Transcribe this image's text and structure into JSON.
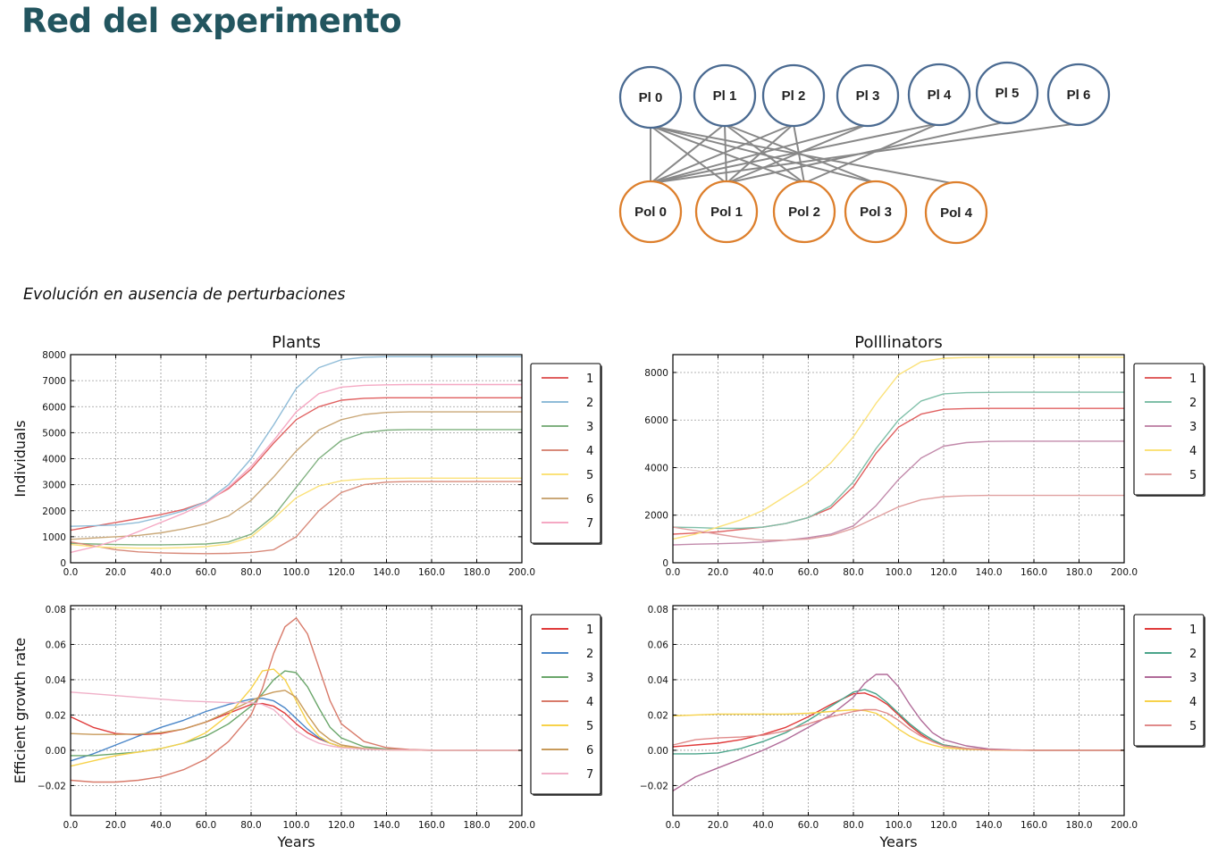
{
  "page": {
    "title": "Red del experimento",
    "subtitle": "Evolución en ausencia de perturbaciones"
  },
  "network": {
    "plants": [
      "Pl 0",
      "Pl 1",
      "Pl 2",
      "Pl 3",
      "Pl 4",
      "Pl 5",
      "Pl 6"
    ],
    "pollinators": [
      "Pol 0",
      "Pol 1",
      "Pol 2",
      "Pol 3",
      "Pol 4"
    ],
    "edges": [
      [
        0,
        0
      ],
      [
        0,
        1
      ],
      [
        0,
        2
      ],
      [
        0,
        3
      ],
      [
        0,
        4
      ],
      [
        1,
        0
      ],
      [
        1,
        1
      ],
      [
        1,
        2
      ],
      [
        1,
        3
      ],
      [
        2,
        0
      ],
      [
        2,
        1
      ],
      [
        2,
        2
      ],
      [
        3,
        0
      ],
      [
        3,
        1
      ],
      [
        4,
        0
      ],
      [
        4,
        2
      ],
      [
        5,
        1
      ],
      [
        6,
        0
      ]
    ],
    "colors": {
      "plant": "#4a6a91",
      "pollinator": "#dd7f2c",
      "edge": "#888888"
    }
  },
  "chart_data": [
    {
      "id": "plants-individuals",
      "type": "line",
      "title": "Plants",
      "xlabel": "",
      "ylabel": "Individuals",
      "xlim": [
        0,
        200
      ],
      "ylim": [
        0,
        8000
      ],
      "yticks": [
        "0",
        "1000",
        "2000",
        "3000",
        "4000",
        "5000",
        "6000",
        "7000",
        "8000"
      ],
      "ytick_values": [
        0,
        1000,
        2000,
        3000,
        4000,
        5000,
        6000,
        7000,
        8000
      ],
      "xticks": [
        "0.0",
        "20.0",
        "40.0",
        "60.0",
        "80.0",
        "100.0",
        "120.0",
        "140.0",
        "160.0",
        "180.0",
        "200.0"
      ],
      "xtick_values": [
        0,
        20,
        40,
        60,
        80,
        100,
        120,
        140,
        160,
        180,
        200
      ],
      "grid": true,
      "legend": "right",
      "x": [
        0,
        10,
        20,
        30,
        40,
        50,
        60,
        70,
        80,
        90,
        100,
        110,
        120,
        130,
        140,
        150,
        160,
        170,
        180,
        190,
        200
      ],
      "series": [
        {
          "name": "1",
          "color": "#e06060",
          "values": [
            1250,
            1400,
            1550,
            1700,
            1850,
            2050,
            2350,
            2850,
            3600,
            4600,
            5500,
            6000,
            6250,
            6320,
            6340,
            6340,
            6340,
            6340,
            6340,
            6340,
            6340
          ]
        },
        {
          "name": "2",
          "color": "#8fbcd8",
          "values": [
            1400,
            1420,
            1450,
            1550,
            1750,
            2000,
            2350,
            3000,
            4000,
            5300,
            6700,
            7500,
            7800,
            7900,
            7920,
            7920,
            7920,
            7920,
            7920,
            7920,
            7920
          ]
        },
        {
          "name": "3",
          "color": "#7fb07f",
          "values": [
            750,
            720,
            700,
            690,
            690,
            700,
            720,
            800,
            1100,
            1800,
            2900,
            4000,
            4700,
            5000,
            5100,
            5120,
            5120,
            5120,
            5120,
            5120,
            5120
          ]
        },
        {
          "name": "4",
          "color": "#d88a7a",
          "values": [
            800,
            650,
            500,
            420,
            380,
            360,
            350,
            360,
            400,
            500,
            1000,
            2000,
            2700,
            3000,
            3100,
            3120,
            3120,
            3120,
            3120,
            3120,
            3120
          ]
        },
        {
          "name": "5",
          "color": "#fbe27a",
          "values": [
            700,
            620,
            580,
            560,
            560,
            580,
            620,
            720,
            1000,
            1700,
            2500,
            2950,
            3150,
            3220,
            3240,
            3250,
            3250,
            3250,
            3250,
            3250,
            3250
          ]
        },
        {
          "name": "6",
          "color": "#caa878",
          "values": [
            900,
            950,
            1000,
            1050,
            1150,
            1300,
            1500,
            1800,
            2400,
            3300,
            4300,
            5100,
            5500,
            5700,
            5780,
            5800,
            5800,
            5800,
            5800,
            5800,
            5800
          ]
        },
        {
          "name": "7",
          "color": "#f5a8c3",
          "values": [
            400,
            600,
            850,
            1200,
            1550,
            1900,
            2300,
            2900,
            3700,
            4700,
            5800,
            6500,
            6750,
            6820,
            6840,
            6850,
            6850,
            6850,
            6850,
            6850,
            6850
          ]
        }
      ]
    },
    {
      "id": "pollinators-individuals",
      "type": "line",
      "title": "Polllinators",
      "xlabel": "",
      "ylabel": "",
      "xlim": [
        0,
        200
      ],
      "ylim": [
        0,
        8750
      ],
      "yticks": [
        "0",
        "2000",
        "4000",
        "6000",
        "8000"
      ],
      "ytick_values": [
        0,
        2000,
        4000,
        6000,
        8000
      ],
      "xticks": [
        "0.0",
        "20.0",
        "40.0",
        "60.0",
        "80.0",
        "100.0",
        "120.0",
        "140.0",
        "160.0",
        "180.0",
        "200.0"
      ],
      "xtick_values": [
        0,
        20,
        40,
        60,
        80,
        100,
        120,
        140,
        160,
        180,
        200
      ],
      "grid": true,
      "legend": "right",
      "x": [
        0,
        10,
        20,
        30,
        40,
        50,
        60,
        70,
        80,
        90,
        100,
        110,
        120,
        130,
        140,
        150,
        160,
        170,
        180,
        190,
        200
      ],
      "series": [
        {
          "name": "1",
          "color": "#e06060",
          "values": [
            1200,
            1250,
            1300,
            1400,
            1500,
            1650,
            1900,
            2300,
            3200,
            4600,
            5700,
            6250,
            6450,
            6480,
            6490,
            6490,
            6490,
            6490,
            6490,
            6490,
            6490
          ]
        },
        {
          "name": "2",
          "color": "#7fbfa8",
          "values": [
            1500,
            1480,
            1450,
            1450,
            1500,
            1650,
            1900,
            2400,
            3400,
            4800,
            6000,
            6800,
            7100,
            7150,
            7160,
            7170,
            7170,
            7170,
            7170,
            7170,
            7170
          ]
        },
        {
          "name": "3",
          "color": "#c28aab",
          "values": [
            750,
            780,
            800,
            830,
            870,
            950,
            1050,
            1200,
            1550,
            2400,
            3500,
            4400,
            4900,
            5050,
            5100,
            5110,
            5110,
            5110,
            5110,
            5110,
            5110
          ]
        },
        {
          "name": "4",
          "color": "#fbe27a",
          "values": [
            1000,
            1200,
            1500,
            1800,
            2200,
            2800,
            3400,
            4200,
            5300,
            6700,
            7900,
            8450,
            8600,
            8630,
            8640,
            8640,
            8640,
            8640,
            8640,
            8640,
            8640
          ]
        },
        {
          "name": "5",
          "color": "#e0a0a0",
          "values": [
            1500,
            1350,
            1200,
            1050,
            950,
            950,
            1000,
            1150,
            1450,
            1900,
            2350,
            2650,
            2780,
            2820,
            2830,
            2830,
            2830,
            2830,
            2830,
            2830,
            2830
          ]
        }
      ]
    },
    {
      "id": "plants-growth",
      "type": "line",
      "title": "",
      "xlabel": "Years",
      "ylabel": "Efficient growth rate",
      "xlim": [
        0,
        200
      ],
      "ylim": [
        -0.037,
        0.082
      ],
      "yticks": [
        "−0.02",
        "0.00",
        "0.02",
        "0.04",
        "0.06",
        "0.08"
      ],
      "ytick_values": [
        -0.02,
        0.0,
        0.02,
        0.04,
        0.06,
        0.08
      ],
      "xticks": [
        "0.0",
        "20.0",
        "40.0",
        "60.0",
        "80.0",
        "100.0",
        "120.0",
        "140.0",
        "160.0",
        "180.0",
        "200.0"
      ],
      "xtick_values": [
        0,
        20,
        40,
        60,
        80,
        100,
        120,
        140,
        160,
        180,
        200
      ],
      "grid": true,
      "legend": "right",
      "x": [
        0,
        10,
        20,
        30,
        40,
        50,
        60,
        70,
        80,
        85,
        90,
        95,
        100,
        105,
        110,
        115,
        120,
        130,
        140,
        150,
        160,
        180,
        200
      ],
      "series": [
        {
          "name": "1",
          "color": "#e03a3a",
          "values": [
            0.019,
            0.013,
            0.0095,
            0.0088,
            0.0095,
            0.012,
            0.016,
            0.021,
            0.026,
            0.0265,
            0.025,
            0.021,
            0.015,
            0.01,
            0.0065,
            0.004,
            0.002,
            0.0008,
            0.0003,
            0.0001,
            0.0,
            0.0,
            0.0
          ]
        },
        {
          "name": "2",
          "color": "#4a86c8",
          "values": [
            -0.006,
            -0.002,
            0.003,
            0.008,
            0.013,
            0.017,
            0.022,
            0.026,
            0.029,
            0.0295,
            0.028,
            0.024,
            0.018,
            0.012,
            0.007,
            0.004,
            0.002,
            0.0008,
            0.0003,
            0.0001,
            0.0,
            0.0,
            0.0
          ]
        },
        {
          "name": "3",
          "color": "#6aa66a",
          "values": [
            -0.003,
            -0.003,
            -0.002,
            -0.001,
            0.001,
            0.004,
            0.008,
            0.015,
            0.025,
            0.032,
            0.04,
            0.045,
            0.044,
            0.036,
            0.024,
            0.013,
            0.007,
            0.002,
            0.0007,
            0.0002,
            0.0,
            0.0,
            0.0
          ]
        },
        {
          "name": "4",
          "color": "#d87a6a",
          "values": [
            -0.017,
            -0.018,
            -0.018,
            -0.017,
            -0.015,
            -0.011,
            -0.005,
            0.005,
            0.02,
            0.035,
            0.055,
            0.07,
            0.075,
            0.066,
            0.047,
            0.028,
            0.015,
            0.005,
            0.0015,
            0.0004,
            0.0001,
            0.0,
            0.0
          ]
        },
        {
          "name": "5",
          "color": "#f7d24a",
          "values": [
            -0.009,
            -0.006,
            -0.003,
            -0.001,
            0.001,
            0.004,
            0.01,
            0.02,
            0.035,
            0.045,
            0.046,
            0.04,
            0.028,
            0.016,
            0.008,
            0.004,
            0.002,
            0.0007,
            0.0002,
            0.0,
            0.0,
            0.0,
            0.0
          ]
        },
        {
          "name": "6",
          "color": "#c89a5a",
          "values": [
            0.0095,
            0.009,
            0.009,
            0.0092,
            0.01,
            0.012,
            0.016,
            0.022,
            0.028,
            0.031,
            0.033,
            0.034,
            0.03,
            0.02,
            0.011,
            0.006,
            0.003,
            0.001,
            0.0003,
            0.0001,
            0.0,
            0.0,
            0.0
          ]
        },
        {
          "name": "7",
          "color": "#f0b0c8",
          "values": [
            0.033,
            0.032,
            0.031,
            0.03,
            0.029,
            0.028,
            0.0275,
            0.027,
            0.027,
            0.026,
            0.023,
            0.017,
            0.011,
            0.007,
            0.004,
            0.0025,
            0.0015,
            0.0006,
            0.0002,
            0.0001,
            0.0,
            0.0,
            0.0
          ]
        }
      ]
    },
    {
      "id": "pollinators-growth",
      "type": "line",
      "title": "",
      "xlabel": "Years",
      "ylabel": "",
      "xlim": [
        0,
        200
      ],
      "ylim": [
        -0.037,
        0.082
      ],
      "yticks": [
        "−0.02",
        "0.00",
        "0.02",
        "0.04",
        "0.06",
        "0.08"
      ],
      "ytick_values": [
        -0.02,
        0.0,
        0.02,
        0.04,
        0.06,
        0.08
      ],
      "xticks": [
        "0.0",
        "20.0",
        "40.0",
        "60.0",
        "80.0",
        "100.0",
        "120.0",
        "140.0",
        "160.0",
        "180.0",
        "200.0"
      ],
      "xtick_values": [
        0,
        20,
        40,
        60,
        80,
        100,
        120,
        140,
        160,
        180,
        200
      ],
      "grid": true,
      "legend": "right",
      "x": [
        0,
        10,
        20,
        30,
        40,
        50,
        60,
        70,
        80,
        85,
        90,
        95,
        100,
        105,
        110,
        115,
        120,
        130,
        140,
        150,
        160,
        180,
        200
      ],
      "series": [
        {
          "name": "1",
          "color": "#e03a3a",
          "values": [
            0.002,
            0.003,
            0.004,
            0.006,
            0.009,
            0.013,
            0.019,
            0.026,
            0.032,
            0.0325,
            0.03,
            0.026,
            0.02,
            0.014,
            0.009,
            0.005,
            0.003,
            0.001,
            0.0003,
            0.0001,
            0.0,
            0.0,
            0.0
          ]
        },
        {
          "name": "2",
          "color": "#4aa48a",
          "values": [
            -0.002,
            -0.002,
            -0.0015,
            0.001,
            0.005,
            0.01,
            0.017,
            0.025,
            0.033,
            0.0345,
            0.032,
            0.027,
            0.021,
            0.015,
            0.01,
            0.006,
            0.003,
            0.001,
            0.0003,
            0.0001,
            0.0,
            0.0,
            0.0
          ]
        },
        {
          "name": "3",
          "color": "#b06a98",
          "values": [
            -0.023,
            -0.015,
            -0.01,
            -0.005,
            0.0,
            0.006,
            0.013,
            0.02,
            0.03,
            0.038,
            0.043,
            0.043,
            0.036,
            0.026,
            0.017,
            0.01,
            0.006,
            0.0025,
            0.0008,
            0.0002,
            0.0,
            0.0,
            0.0
          ]
        },
        {
          "name": "4",
          "color": "#f7d24a",
          "values": [
            0.0195,
            0.02,
            0.0205,
            0.0205,
            0.0205,
            0.0205,
            0.021,
            0.022,
            0.023,
            0.0225,
            0.021,
            0.017,
            0.012,
            0.008,
            0.005,
            0.003,
            0.0015,
            0.0005,
            0.0002,
            0.0,
            0.0,
            0.0,
            0.0
          ]
        },
        {
          "name": "5",
          "color": "#e08a8a",
          "values": [
            0.003,
            0.006,
            0.007,
            0.0075,
            0.0085,
            0.011,
            0.015,
            0.019,
            0.022,
            0.023,
            0.023,
            0.021,
            0.017,
            0.012,
            0.008,
            0.005,
            0.0025,
            0.001,
            0.0003,
            0.0001,
            0.0,
            0.0,
            0.0
          ]
        }
      ]
    }
  ]
}
